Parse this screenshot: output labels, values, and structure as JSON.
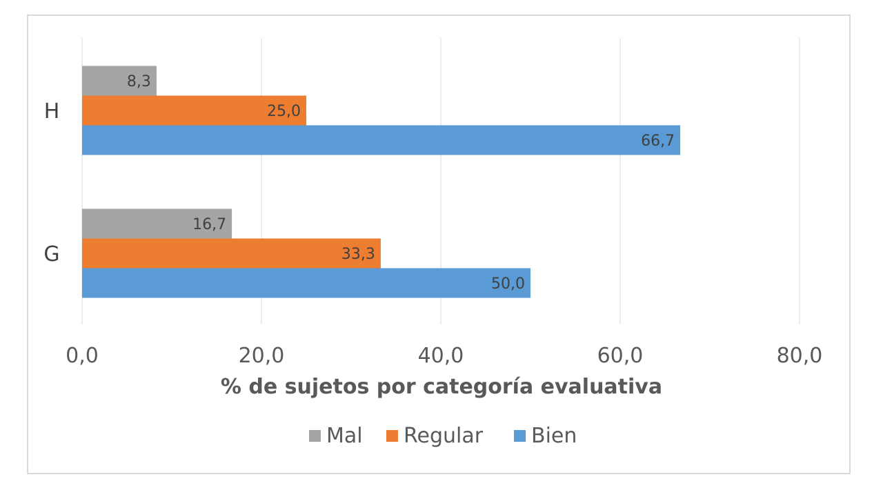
{
  "chart_data": {
    "type": "bar",
    "orientation": "horizontal",
    "categories": [
      "H",
      "G"
    ],
    "series": [
      {
        "name": "Mal",
        "color": "#a5a5a5",
        "values": [
          8.3,
          16.7
        ],
        "labels": [
          "8,3",
          "16,7"
        ]
      },
      {
        "name": "Regular",
        "color": "#ed7d31",
        "values": [
          25.0,
          33.3
        ],
        "labels": [
          "25,0",
          "33,3"
        ]
      },
      {
        "name": "Bien",
        "color": "#5b9bd5",
        "values": [
          66.7,
          50.0
        ],
        "labels": [
          "66,7",
          "50,0"
        ]
      }
    ],
    "xlabel": "% de sujetos por categoría evaluativa",
    "xlim": [
      0,
      80
    ],
    "xticks": [
      0,
      20,
      40,
      60,
      80
    ],
    "xtick_labels": [
      "0,0",
      "20,0",
      "40,0",
      "60,0",
      "80,0"
    ],
    "grid": true,
    "legend": "bottom"
  }
}
